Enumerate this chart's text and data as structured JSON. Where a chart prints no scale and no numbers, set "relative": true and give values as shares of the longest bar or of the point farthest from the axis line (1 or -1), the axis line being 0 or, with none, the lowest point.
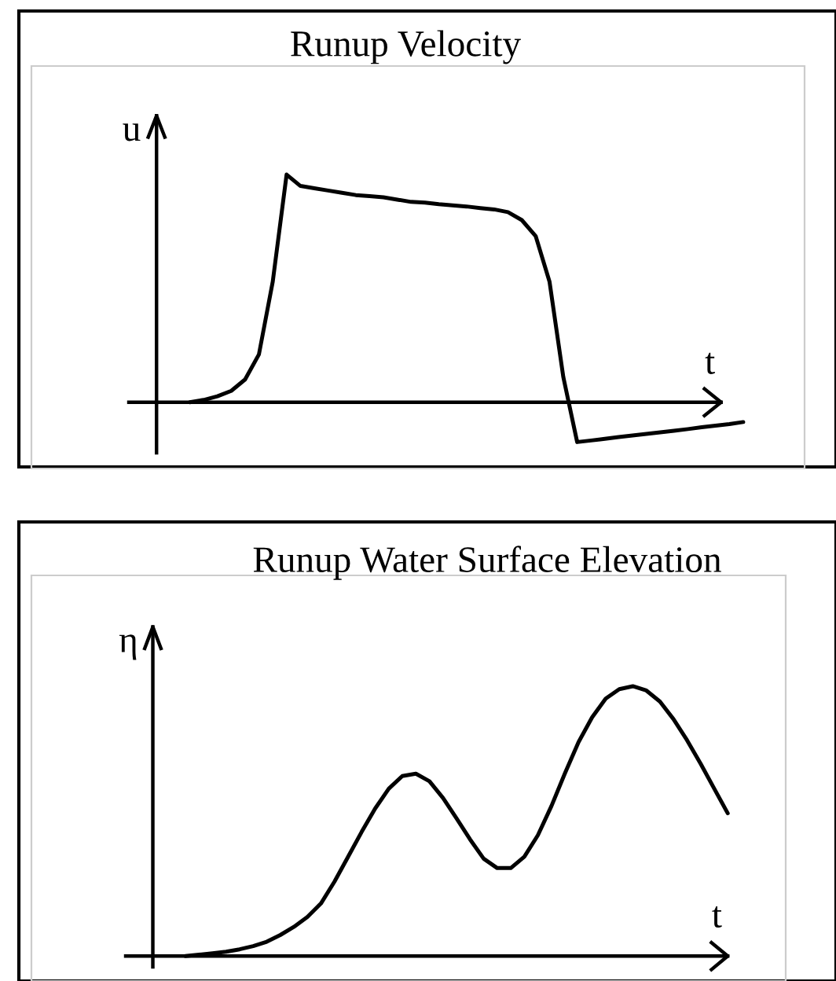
{
  "chart_data": [
    {
      "type": "line",
      "relative": true,
      "title": "Runup Velocity",
      "xlabel": "t",
      "ylabel": "u",
      "categories": [
        null,
        null,
        null,
        null,
        null,
        null,
        null,
        null,
        null,
        null,
        null,
        null,
        null,
        null,
        null,
        null,
        null,
        null,
        null,
        null,
        null,
        null,
        null,
        null,
        null,
        null,
        null,
        null,
        null,
        null,
        null,
        null,
        null,
        null,
        null,
        null,
        null,
        null,
        null,
        null,
        null
      ],
      "series": [
        {
          "color": "#000000",
          "values": [
            0,
            0.01,
            0.026,
            0.05,
            0.1,
            0.21,
            0.53,
            1,
            0.95,
            0.94,
            0.93,
            0.92,
            0.91,
            0.905,
            0.9,
            0.89,
            0.88,
            0.877,
            0.87,
            0.865,
            0.86,
            0.853,
            0.847,
            0.835,
            0.8,
            0.73,
            0.53,
            0.11,
            -0.175,
            -0.168,
            -0.161,
            -0.153,
            -0.146,
            -0.139,
            -0.132,
            -0.125,
            -0.118,
            -0.11,
            -0.103,
            -0.096,
            -0.087
          ]
        }
      ]
    },
    {
      "type": "line",
      "relative": true,
      "title": "Runup Water Surface Elevation",
      "xlabel": "t",
      "ylabel": "η",
      "categories": [
        null,
        null,
        null,
        null,
        null,
        null,
        null,
        null,
        null,
        null,
        null,
        null,
        null,
        null,
        null,
        null,
        null,
        null,
        null,
        null,
        null,
        null,
        null,
        null,
        null,
        null,
        null,
        null,
        null,
        null,
        null,
        null,
        null,
        null,
        null,
        null,
        null,
        null,
        null,
        null,
        null
      ],
      "series": [
        {
          "color": "#000000",
          "values": [
            0,
            0.005,
            0.01,
            0.016,
            0.025,
            0.037,
            0.053,
            0.078,
            0.108,
            0.145,
            0.195,
            0.276,
            0.368,
            0.46,
            0.547,
            0.62,
            0.667,
            0.676,
            0.648,
            0.586,
            0.51,
            0.432,
            0.361,
            0.326,
            0.326,
            0.368,
            0.448,
            0.556,
            0.678,
            0.793,
            0.885,
            0.954,
            0.989,
            1,
            0.984,
            0.943,
            0.878,
            0.8,
            0.713,
            0.621,
            0.529
          ]
        }
      ]
    }
  ]
}
